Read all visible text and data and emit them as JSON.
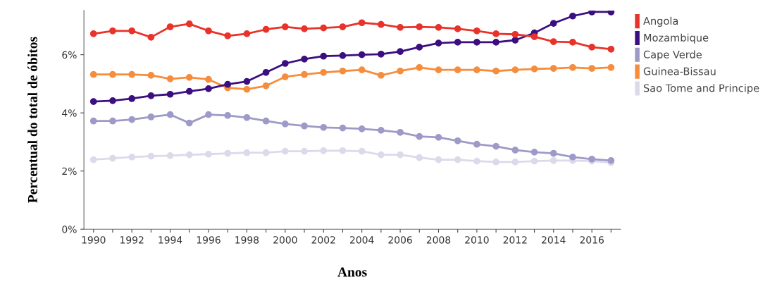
{
  "chart_data": {
    "type": "line",
    "xlabel": "Anos",
    "ylabel": "Percentual do total de óbitos",
    "x": [
      1990,
      1991,
      1992,
      1993,
      1994,
      1995,
      1996,
      1997,
      1998,
      1999,
      2000,
      2001,
      2002,
      2003,
      2004,
      2005,
      2006,
      2007,
      2008,
      2009,
      2010,
      2011,
      2012,
      2013,
      2014,
      2015,
      2016,
      2017
    ],
    "series": [
      {
        "name": "Angola",
        "color": "#e8332a",
        "values": [
          6.72,
          6.82,
          6.82,
          6.6,
          6.96,
          7.06,
          6.82,
          6.65,
          6.72,
          6.87,
          6.96,
          6.89,
          6.92,
          6.96,
          7.1,
          7.04,
          6.94,
          6.96,
          6.94,
          6.89,
          6.82,
          6.72,
          6.7,
          6.62,
          6.45,
          6.43,
          6.26,
          6.19
        ]
      },
      {
        "name": "Mozambique",
        "color": "#3b0f80",
        "values": [
          4.39,
          4.42,
          4.49,
          4.59,
          4.64,
          4.74,
          4.83,
          4.98,
          5.08,
          5.39,
          5.7,
          5.85,
          5.95,
          5.97,
          6.0,
          6.02,
          6.11,
          6.26,
          6.4,
          6.43,
          6.43,
          6.43,
          6.5,
          6.75,
          7.08,
          7.33,
          7.47,
          7.47
        ]
      },
      {
        "name": "Cape Verde",
        "color": "#9e9ac8",
        "values": [
          3.72,
          3.72,
          3.77,
          3.86,
          3.94,
          3.65,
          3.94,
          3.91,
          3.84,
          3.72,
          3.62,
          3.55,
          3.5,
          3.48,
          3.45,
          3.4,
          3.33,
          3.19,
          3.16,
          3.04,
          2.92,
          2.85,
          2.72,
          2.65,
          2.61,
          2.48,
          2.41,
          2.36
        ]
      },
      {
        "name": "Guinea-Bissau",
        "color": "#f68d3d",
        "values": [
          5.32,
          5.32,
          5.32,
          5.29,
          5.17,
          5.22,
          5.15,
          4.86,
          4.81,
          4.93,
          5.24,
          5.32,
          5.39,
          5.44,
          5.48,
          5.29,
          5.44,
          5.56,
          5.48,
          5.48,
          5.48,
          5.44,
          5.48,
          5.51,
          5.53,
          5.56,
          5.53,
          5.56
        ]
      },
      {
        "name": "Sao Tome and Principe",
        "color": "#dadaeb",
        "values": [
          2.39,
          2.44,
          2.48,
          2.51,
          2.53,
          2.56,
          2.58,
          2.61,
          2.63,
          2.63,
          2.68,
          2.68,
          2.7,
          2.7,
          2.68,
          2.56,
          2.56,
          2.46,
          2.39,
          2.39,
          2.34,
          2.31,
          2.31,
          2.34,
          2.36,
          2.36,
          2.34,
          2.29
        ]
      }
    ],
    "xlim": [
      1989.5,
      2017.5
    ],
    "xticks": [
      1990,
      {
        "value": 1991,
        "label": null
      },
      1992,
      {
        "value": 1993,
        "label": null
      },
      1994,
      {
        "value": 1995,
        "label": null
      },
      1996,
      {
        "value": 1997,
        "label": null
      },
      1998,
      {
        "value": 1999,
        "label": null
      },
      2000,
      {
        "value": 2001,
        "label": null
      },
      2002,
      {
        "value": 2003,
        "label": null
      },
      2004,
      {
        "value": 2005,
        "label": null
      },
      2006,
      {
        "value": 2007,
        "label": null
      },
      2008,
      {
        "value": 2009,
        "label": null
      },
      2010,
      {
        "value": 2011,
        "label": null
      },
      2012,
      {
        "value": 2013,
        "label": null
      },
      2014,
      {
        "value": 2015,
        "label": null
      },
      2016,
      {
        "value": 2017,
        "label": null
      }
    ],
    "ylim": [
      0,
      7.52
    ],
    "yticks": [
      {
        "value": 0,
        "label": "0%"
      },
      {
        "value": 2,
        "label": "2%"
      },
      {
        "value": 4,
        "label": "4%"
      },
      {
        "value": 6,
        "label": "6%"
      }
    ],
    "grid": false,
    "legend": "top right",
    "marker": "circle",
    "line_style": "solid"
  }
}
